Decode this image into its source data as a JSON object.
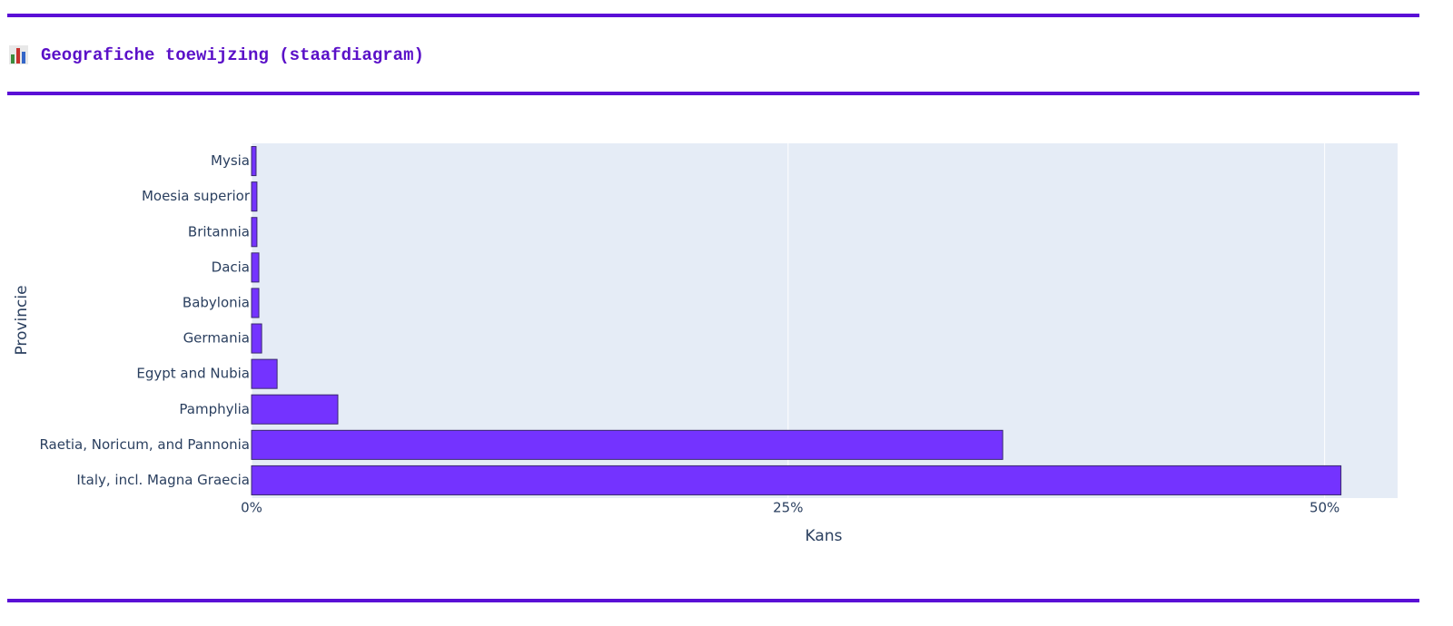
{
  "header": {
    "title": "Geografiche toewijzing (staafdiagram)"
  },
  "chart_data": {
    "type": "bar",
    "orientation": "horizontal",
    "categories": [
      "Mysia",
      "Moesia superior",
      "Britannia",
      "Dacia",
      "Babylonia",
      "Germania",
      "Egypt and Nubia",
      "Pamphylia",
      "Raetia, Noricum, and Pannonia",
      "Italy, incl. Magna Graecia"
    ],
    "values": [
      0.21,
      0.25,
      0.25,
      0.34,
      0.34,
      0.47,
      1.19,
      4.02,
      35.0,
      50.76
    ],
    "color": "#7433ff",
    "x_label": "Kans",
    "y_label": "Provincie",
    "xlim": [
      0,
      53.4
    ],
    "xticks": [
      {
        "value": 0,
        "label": "0%"
      },
      {
        "value": 25,
        "label": "25%"
      },
      {
        "value": 50,
        "label": "50%"
      }
    ],
    "grid": true
  }
}
